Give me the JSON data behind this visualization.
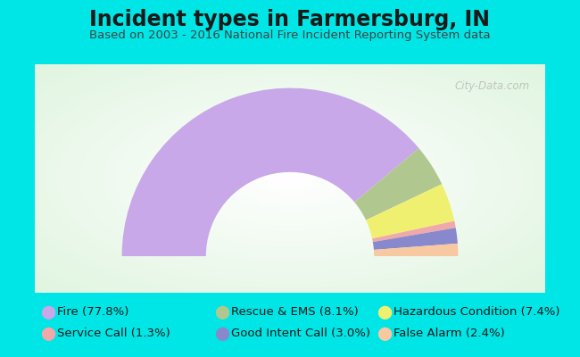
{
  "title": "Incident types in Farmersburg, IN",
  "subtitle": "Based on 2003 - 2016 National Fire Incident Reporting System data",
  "background_outer": "#00e5e5",
  "watermark": "City-Data.com",
  "segments": [
    {
      "label": "Fire",
      "pct": 77.8,
      "color": "#c8a8e8"
    },
    {
      "label": "Rescue & EMS",
      "pct": 8.1,
      "color": "#b0c890"
    },
    {
      "label": "Hazardous Condition",
      "pct": 7.4,
      "color": "#f0f070"
    },
    {
      "label": "Service Call",
      "pct": 1.3,
      "color": "#f0a8a8"
    },
    {
      "label": "Good Intent Call",
      "pct": 3.0,
      "color": "#8888cc"
    },
    {
      "label": "False Alarm",
      "pct": 2.4,
      "color": "#f8c8a0"
    }
  ],
  "legend": [
    [
      {
        "label": "Fire (77.8%)",
        "color": "#c8a8e8"
      },
      {
        "label": "Service Call (1.3%)",
        "color": "#f0a8a8"
      }
    ],
    [
      {
        "label": "Rescue & EMS (8.1%)",
        "color": "#b0c890"
      },
      {
        "label": "Good Intent Call (3.0%)",
        "color": "#8888cc"
      }
    ],
    [
      {
        "label": "Hazardous Condition (7.4%)",
        "color": "#f0f070"
      },
      {
        "label": "False Alarm (2.4%)",
        "color": "#f8c8a0"
      }
    ]
  ],
  "title_fontsize": 17,
  "subtitle_fontsize": 9.5,
  "legend_fontsize": 9.5
}
